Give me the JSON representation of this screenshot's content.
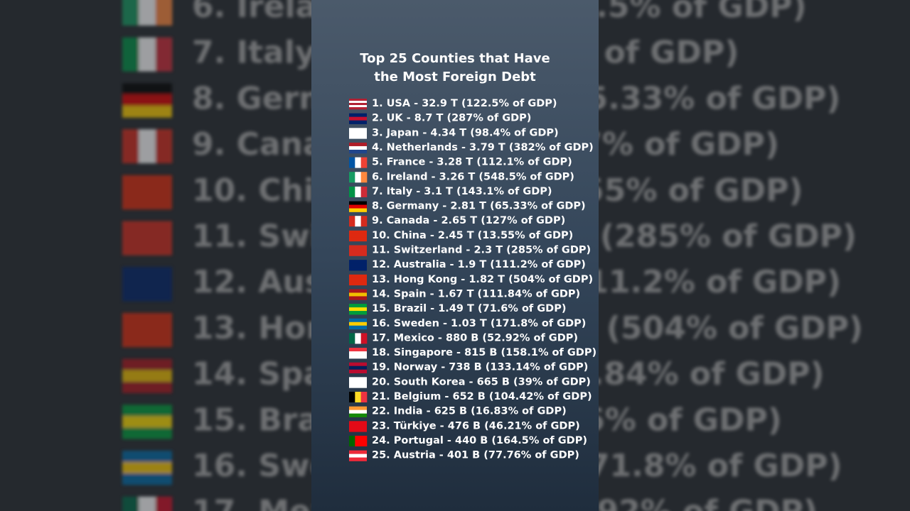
{
  "title": [
    "Top 25 Counties that Have",
    "the Most Foreign Debt"
  ],
  "items": [
    "1. USA - 32.9 T (122.5% of GDP)",
    "2. UK - 8.7 T (287% of GDP)",
    "3. Japan - 4.34 T (98.4% of GDP)",
    "4. Netherlands - 3.79 T (382% of GDP)",
    "5. France - 3.28 T (112.1% of GDP)",
    "6. Ireland - 3.26 T (548.5% of GDP)",
    "7. Italy - 3.1 T (143.1% of GDP)",
    "8. Germany - 2.81 T (65.33% of GDP)",
    "9. Canada - 2.65 T (127% of GDP)",
    "10. China - 2.45 T (13.55% of GDP)",
    "11. Switzerland - 2.3 T (285% of GDP)",
    "12. Australia - 1.9 T (111.2% of GDP)",
    "13. Hong Kong - 1.82 T (504% of GDP)",
    "14. Spain - 1.67 T (111.84% of GDP)",
    "15. Brazil - 1.49 T (71.6% of GDP)",
    "16. Sweden - 1.03 T (171.8% of GDP)",
    "17. Mexico - 880 B (52.92% of GDP)",
    "18. Singapore - 815 B (158.1% of GDP)",
    "19. Norway - 738 B (133.14% of GDP)",
    "20. South Korea - 665 B (39% of GDP)",
    "21. Belgium - 652 B (104.42% of GDP)",
    "22. India - 625 B (16.83% of GDP)",
    "23. Türkiye - 476 B (46.21% of GDP)",
    "24. Portugal - 440 B (164.5% of GDP)",
    "25. Austria - 401 B (77.76% of GDP)"
  ]
}
